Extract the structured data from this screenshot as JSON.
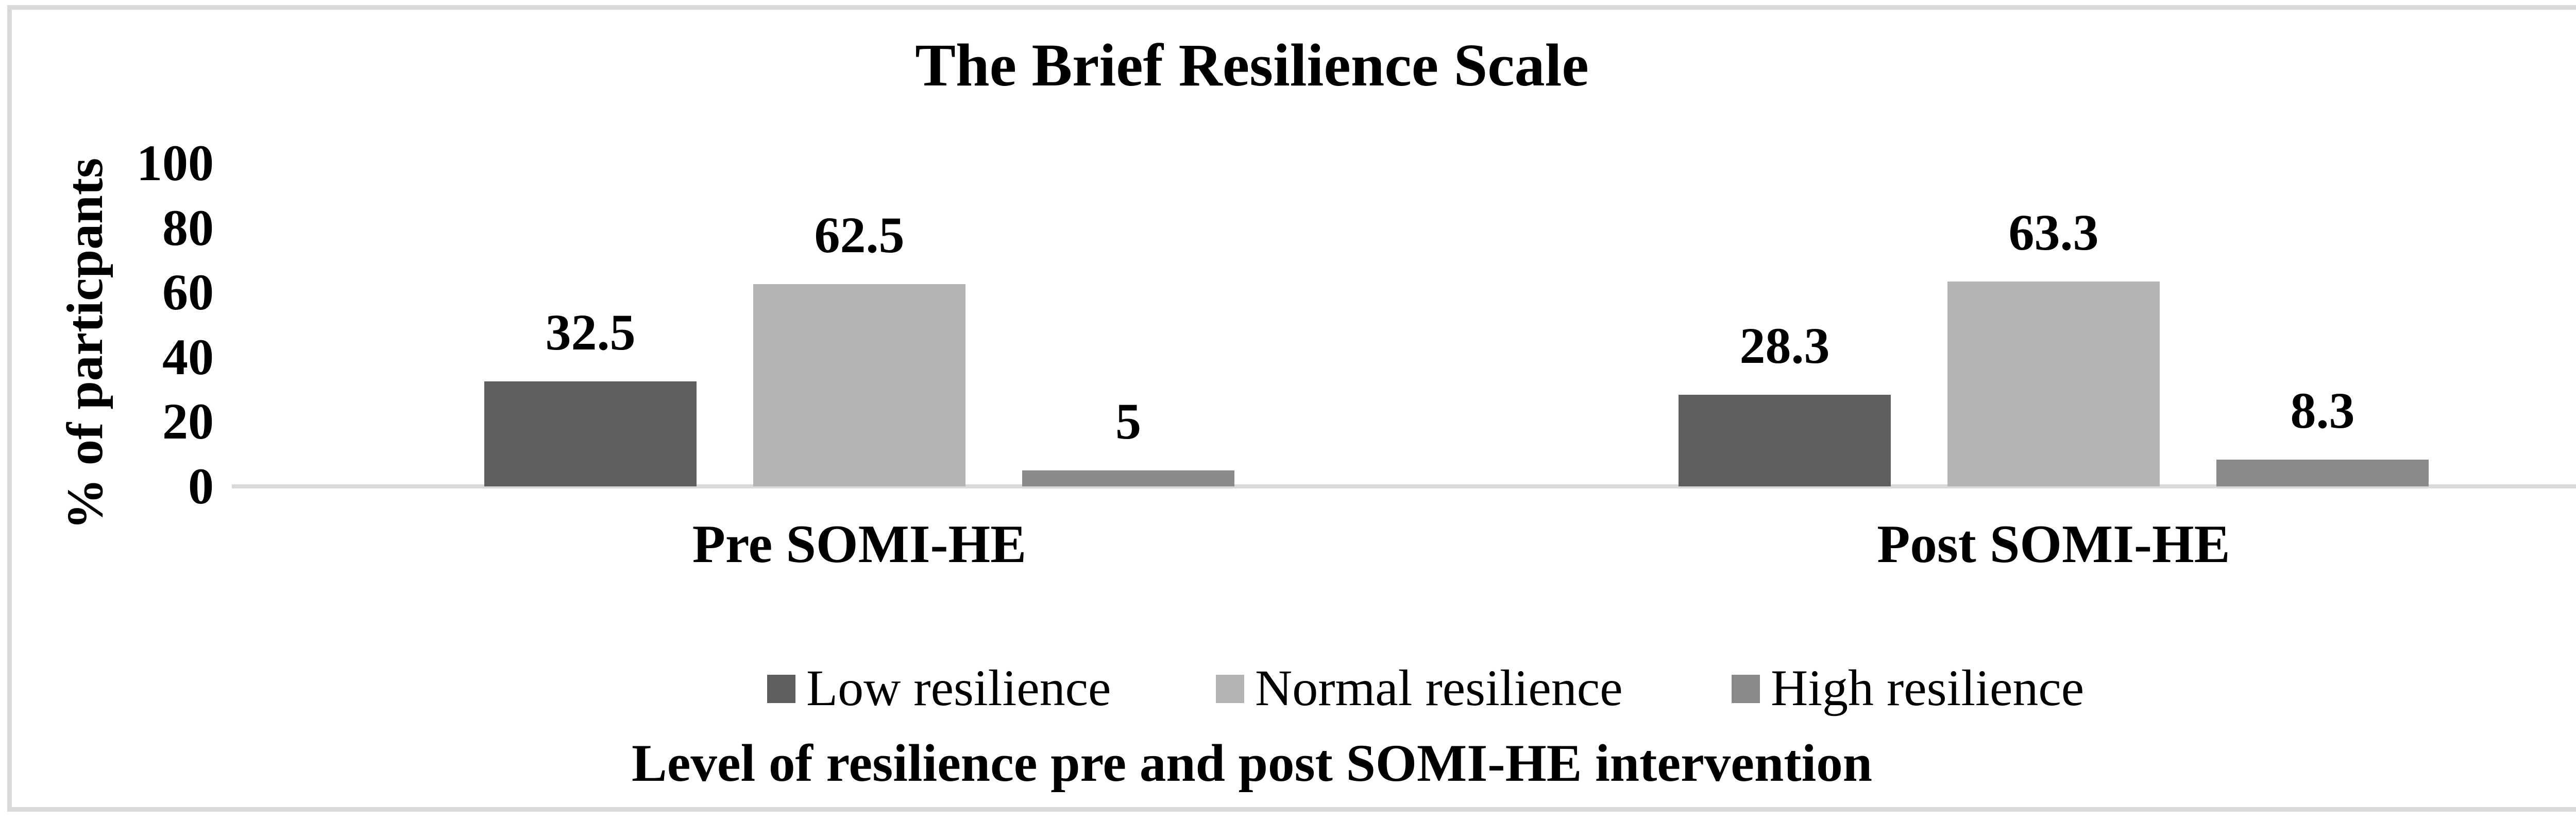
{
  "figure": {
    "title": "The Brief Resilience Scale",
    "y_axis_title": "% of particpants",
    "x_axis_title": "Level of resilience pre and post SOMI-HE intervention"
  },
  "chart_data": {
    "type": "bar",
    "title": "The Brief Resilience Scale",
    "ylabel": "% of particpants",
    "xlabel": "Level of resilience pre and post SOMI-HE intervention",
    "categories": [
      "Pre SOMI-HE",
      "Post SOMI-HE"
    ],
    "series": [
      {
        "name": "Low resilience",
        "color": "#5E5E5E",
        "values": [
          32.5,
          28.3
        ]
      },
      {
        "name": "Normal resilience",
        "color": "#B3B3B3",
        "values": [
          62.5,
          63.3
        ]
      },
      {
        "name": "High resilience",
        "color": "#8A8A8A",
        "values": [
          5,
          8.3
        ]
      }
    ],
    "data_labels": [
      [
        "32.5",
        "62.5",
        "5"
      ],
      [
        "28.3",
        "63.3",
        "8.3"
      ]
    ],
    "yticks": [
      100,
      80,
      60,
      40,
      20,
      0
    ],
    "ylim": [
      0,
      100
    ],
    "grid": false,
    "legend_position": "bottom",
    "axis_color": "#D9D9D9",
    "border_color": "#D9D9D9",
    "text_color": "#000000"
  }
}
